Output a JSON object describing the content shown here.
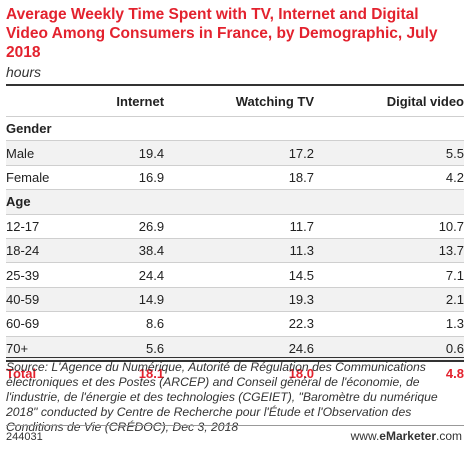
{
  "chart_data": {
    "type": "table",
    "title": "Average Weekly Time Spent with TV, Internet and Digital Video Among Consumers in France, by Demographic, July 2018",
    "subtitle": "hours",
    "columns": [
      "Internet",
      "Watching TV",
      "Digital video"
    ],
    "sections": [
      {
        "name": "Gender",
        "rows": [
          {
            "label": "Male",
            "values": [
              "19.4",
              "17.2",
              "5.5"
            ]
          },
          {
            "label": "Female",
            "values": [
              "16.9",
              "18.7",
              "4.2"
            ]
          }
        ]
      },
      {
        "name": "Age",
        "rows": [
          {
            "label": "12-17",
            "values": [
              "26.9",
              "11.7",
              "10.7"
            ]
          },
          {
            "label": "18-24",
            "values": [
              "38.4",
              "11.3",
              "13.7"
            ]
          },
          {
            "label": "25-39",
            "values": [
              "24.4",
              "14.5",
              "7.1"
            ]
          },
          {
            "label": "40-59",
            "values": [
              "14.9",
              "19.3",
              "2.1"
            ]
          },
          {
            "label": "60-69",
            "values": [
              "8.6",
              "22.3",
              "1.3"
            ]
          },
          {
            "label": "70+",
            "values": [
              "5.6",
              "24.6",
              "0.6"
            ]
          }
        ]
      }
    ],
    "total": {
      "label": "Total",
      "values": [
        "18.1",
        "18.0",
        "4.8"
      ]
    }
  },
  "source": "Source: L'Agence du Numérique, Autorité de Régulation des Communications électroniques et des Postes (ARCEP) and Conseil général de l'économie, de l'industrie, de l'énergie et des technologies (CGEIET), \"Baromètre du numérique 2018\" conducted by Centre de Recherche pour l'Étude et l'Observation des Conditions de Vie (CRÉDOC), Dec 3, 2018",
  "footer": {
    "id": "244031",
    "brand_prefix": "www.",
    "brand_name": "eMarketer",
    "brand_suffix": ".com"
  },
  "colors": {
    "accent": "#e3222e",
    "shade": "#f2f2f2"
  }
}
